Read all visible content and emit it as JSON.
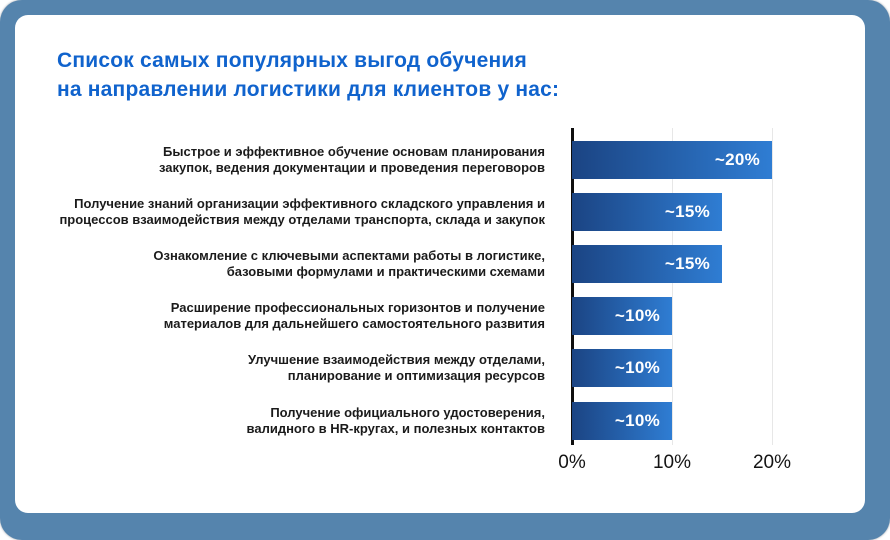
{
  "frame": {
    "bg_color": "#5584ad",
    "card_color": "#ffffff"
  },
  "title": {
    "line1": "Список самых популярных выгод обучения",
    "line2": "на направлении логистики для клиентов у нас:",
    "color": "#1063cd"
  },
  "chart_data": {
    "type": "bar",
    "orientation": "horizontal",
    "title": "Список самых популярных выгод обучения на направлении логистики для клиентов у нас:",
    "categories": [
      "Быстрое и эффективное обучение основам планирования закупок, ведения документации и проведения переговоров",
      "Получение знаний организации эффективного складского управления и процессов взаимодействия между отделами транспорта, склада и закупок",
      "Ознакомление с ключевыми аспектами работы в логистике, базовыми формулами и практическими схемами",
      "Расширение профессиональных горизонтов и получение материалов для дальнейшего самостоятельного развития",
      "Улучшение взаимодействия между отделами, планирование и оптимизация ресурсов",
      "Получение официального удостоверения, валидного в HR-кругах, и полезных контактов"
    ],
    "category_lines": [
      [
        "Быстрое и эффективное обучение основам планирования",
        "закупок, ведения документации и проведения переговоров"
      ],
      [
        "Получение знаний организации эффективного складского управления и",
        "процессов взаимодействия между отделами транспорта, склада и закупок"
      ],
      [
        "Ознакомление с ключевыми аспектами работы в логистике,",
        "базовыми формулами и практическими схемами"
      ],
      [
        "Расширение профессиональных горизонтов и получение",
        "материалов для дальнейшего самостоятельного развития"
      ],
      [
        "Улучшение взаимодействия между отделами,",
        "планирование и оптимизация ресурсов"
      ],
      [
        "Получение официального удостоверения,",
        "валидного в HR-кругах, и полезных контактов"
      ]
    ],
    "values": [
      20,
      15,
      15,
      10,
      10,
      10
    ],
    "value_labels": [
      "~20%",
      "~15%",
      "~15%",
      "~10%",
      "~10%",
      "~10%"
    ],
    "x_ticks": [
      "0%",
      "10%",
      "20%"
    ],
    "xlim": [
      0,
      20
    ],
    "xlabel": "",
    "ylabel": "",
    "grid": "vertical gridlines at 10% and 20%",
    "legend": "none",
    "bar_gradient": [
      "#1b4483",
      "#2f7dd3"
    ],
    "axis_color": "#0e0e0e",
    "tick_color": "#141414",
    "label_color": "#1b1b1b"
  }
}
